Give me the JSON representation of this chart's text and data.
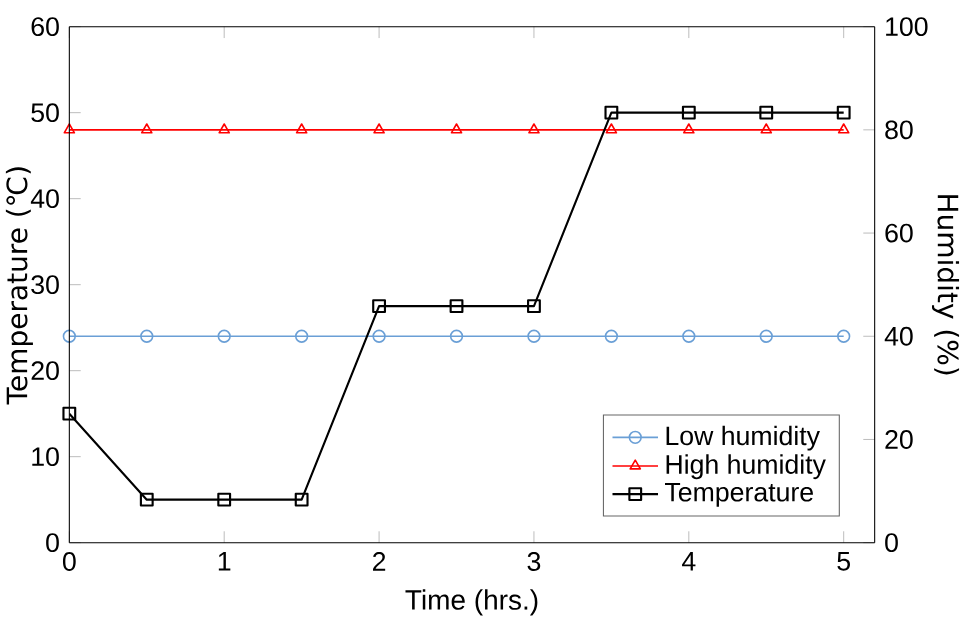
{
  "chart_data": {
    "type": "line",
    "xlabel": "Time (hrs.)",
    "ylabel": "Temperature (℃)",
    "y2label": "Humidity (%)",
    "x": [
      0,
      0.5,
      1,
      1.5,
      2,
      2.5,
      3,
      3.5,
      4,
      4.5,
      5
    ],
    "series": [
      {
        "name": "Low humidity",
        "color": "#6a9fd6",
        "marker": "circle",
        "axis": "y2",
        "values": [
          40,
          40,
          40,
          40,
          40,
          40,
          40,
          40,
          40,
          40,
          40
        ]
      },
      {
        "name": "High humidity",
        "color": "#ff0000",
        "marker": "triangle",
        "axis": "y2",
        "values": [
          80,
          80,
          80,
          80,
          80,
          80,
          80,
          80,
          80,
          80,
          80
        ]
      },
      {
        "name": "Temperature",
        "color": "#000000",
        "marker": "square",
        "axis": "y",
        "values": [
          15,
          5,
          5,
          5,
          27.5,
          27.5,
          27.5,
          50,
          50,
          50,
          50
        ]
      }
    ],
    "xlim": [
      0,
      5.2
    ],
    "xticks": [
      0,
      1,
      2,
      3,
      4,
      5
    ],
    "ylim": [
      0,
      60
    ],
    "yticks": [
      0,
      10,
      20,
      30,
      40,
      50,
      60
    ],
    "y2lim": [
      0,
      100
    ],
    "y2ticks": [
      0,
      20,
      40,
      60,
      80,
      100
    ],
    "legend": "bottom right",
    "grid": false
  }
}
